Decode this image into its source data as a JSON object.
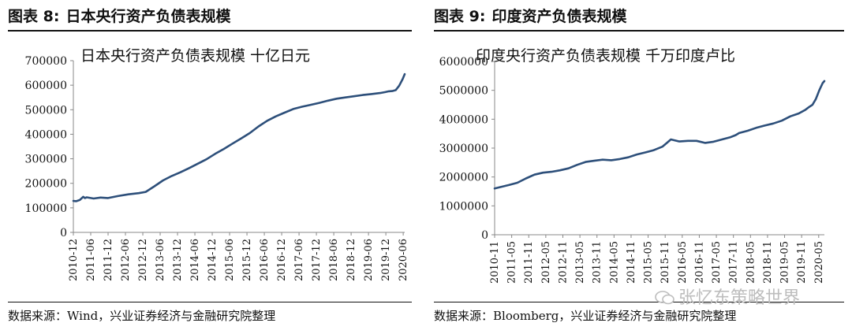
{
  "left": {
    "figure_title_num": "图表 8:",
    "figure_title_text": "日本央行资产负债表规模",
    "source": "数据来源：Wind，兴业证券经济与金融研究院整理"
  },
  "right": {
    "figure_title_num": "图表 9:",
    "figure_title_text": "印度资产负债表规模",
    "source": "数据来源：Bloomberg，兴业证券经济与金融研究院整理"
  },
  "watermark": "张忆东策略世界",
  "chart_data": [
    {
      "type": "line",
      "title": "日本央行资产负债表规模 十亿日元",
      "xlabel": "",
      "ylabel": "",
      "ylim": [
        0,
        700000
      ],
      "yticks": [
        0,
        100000,
        200000,
        300000,
        400000,
        500000,
        600000,
        700000
      ],
      "ytick_labels": [
        "0",
        "100000",
        "200000",
        "300000",
        "400000",
        "500000",
        "600000",
        "700000"
      ],
      "xlim": [
        2010.917,
        2020.46
      ],
      "xticks": [
        2010.917,
        2011.417,
        2011.917,
        2012.417,
        2012.917,
        2013.417,
        2013.917,
        2014.417,
        2014.917,
        2015.417,
        2015.917,
        2016.417,
        2016.917,
        2017.417,
        2017.917,
        2018.417,
        2018.917,
        2019.417,
        2019.917,
        2020.417
      ],
      "xtick_labels": [
        "2010-12",
        "2011-06",
        "2011-12",
        "2012-06",
        "2012-12",
        "2013-06",
        "2013-12",
        "2014-06",
        "2014-12",
        "2015-06",
        "2015-12",
        "2016-06",
        "2016-12",
        "2017-06",
        "2017-12",
        "2018-06",
        "2018-12",
        "2019-06",
        "2019-12",
        "2020-06"
      ],
      "color": "#2d4f7a",
      "series": [
        {
          "x": [
            2010.917,
            2011.0,
            2011.1,
            2011.2,
            2011.25,
            2011.3,
            2011.5,
            2011.7,
            2011.917,
            2012.2,
            2012.5,
            2012.8,
            2013.0,
            2013.25,
            2013.5,
            2013.75,
            2014.0,
            2014.25,
            2014.5,
            2014.75,
            2015.0,
            2015.25,
            2015.5,
            2015.75,
            2016.0,
            2016.25,
            2016.5,
            2016.75,
            2017.0,
            2017.25,
            2017.5,
            2017.75,
            2018.0,
            2018.25,
            2018.5,
            2018.75,
            2019.0,
            2019.25,
            2019.5,
            2019.75,
            2019.9,
            2020.0,
            2020.1,
            2020.2,
            2020.3,
            2020.4,
            2020.46
          ],
          "y": [
            128000,
            127000,
            132000,
            145000,
            140000,
            143000,
            138000,
            142000,
            140000,
            148000,
            155000,
            160000,
            165000,
            188000,
            212000,
            230000,
            245000,
            262000,
            280000,
            298000,
            320000,
            340000,
            362000,
            383000,
            405000,
            432000,
            455000,
            473000,
            488000,
            503000,
            512000,
            520000,
            528000,
            537000,
            545000,
            550000,
            555000,
            560000,
            564000,
            568000,
            572000,
            575000,
            576000,
            580000,
            598000,
            625000,
            645000
          ]
        }
      ]
    },
    {
      "type": "line",
      "title": "印度央行资产负债表规模 千万印度卢比",
      "xlabel": "",
      "ylabel": "",
      "ylim": [
        0,
        6000000
      ],
      "yticks": [
        0,
        1000000,
        2000000,
        3000000,
        4000000,
        5000000,
        6000000
      ],
      "ytick_labels": [
        "0",
        "1000000",
        "2000000",
        "3000000",
        "4000000",
        "5000000",
        "6000000"
      ],
      "xlim": [
        2010.833,
        2020.5
      ],
      "xticks": [
        2010.833,
        2011.333,
        2011.833,
        2012.333,
        2012.833,
        2013.333,
        2013.833,
        2014.333,
        2014.833,
        2015.333,
        2015.833,
        2016.333,
        2016.833,
        2017.333,
        2017.833,
        2018.333,
        2018.833,
        2019.333,
        2019.833,
        2020.333
      ],
      "xtick_labels": [
        "2010-11",
        "2011-05",
        "2011-11",
        "2012-05",
        "2012-11",
        "2013-05",
        "2013-11",
        "2014-05",
        "2014-11",
        "2015-05",
        "2015-11",
        "2016-05",
        "2016-11",
        "2017-05",
        "2017-11",
        "2018-05",
        "2018-11",
        "2019-05",
        "2019-11",
        "2020-05"
      ],
      "color": "#2d4f7a",
      "series": [
        {
          "x": [
            2010.833,
            2011.0,
            2011.25,
            2011.5,
            2011.75,
            2012.0,
            2012.25,
            2012.5,
            2012.75,
            2013.0,
            2013.25,
            2013.5,
            2013.75,
            2014.0,
            2014.25,
            2014.5,
            2014.75,
            2015.0,
            2015.25,
            2015.5,
            2015.75,
            2015.9,
            2016.0,
            2016.25,
            2016.5,
            2016.75,
            2017.0,
            2017.25,
            2017.5,
            2017.75,
            2017.9,
            2018.0,
            2018.25,
            2018.5,
            2018.75,
            2019.0,
            2019.25,
            2019.5,
            2019.75,
            2019.95,
            2020.05,
            2020.15,
            2020.25,
            2020.35,
            2020.45,
            2020.5
          ],
          "y": [
            1600000,
            1650000,
            1720000,
            1800000,
            1950000,
            2080000,
            2150000,
            2180000,
            2230000,
            2300000,
            2420000,
            2520000,
            2560000,
            2600000,
            2580000,
            2620000,
            2680000,
            2780000,
            2850000,
            2930000,
            3050000,
            3200000,
            3300000,
            3230000,
            3250000,
            3250000,
            3180000,
            3220000,
            3300000,
            3380000,
            3450000,
            3520000,
            3600000,
            3700000,
            3780000,
            3850000,
            3950000,
            4100000,
            4200000,
            4330000,
            4420000,
            4500000,
            4700000,
            5000000,
            5250000,
            5320000
          ]
        }
      ]
    }
  ]
}
